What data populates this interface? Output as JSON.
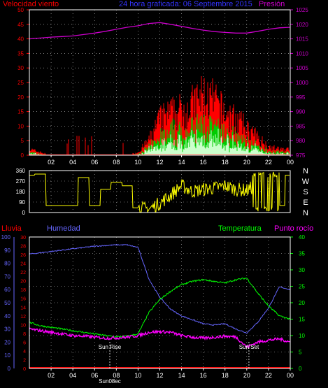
{
  "colors": {
    "background": "#000000",
    "axis": "#ffffff",
    "grid": "#ffffff",
    "wind": "#ff0000",
    "wind_mean": "#00cc00",
    "wind_low": "#ccffcc",
    "pressure": "#cc00cc",
    "wind_dir": "#ffff00",
    "rain": "#ff0000",
    "humidity": "#6666ff",
    "temperature": "#00ff00",
    "dewpoint": "#ff00ff",
    "sun": "#ffffff"
  },
  "chart_data": [
    {
      "type": "area",
      "title": "24 hora graficada: 06 Septiembre 2015",
      "ylabel_left": "Velocidad viento",
      "ylabel_right": "Presión",
      "ylim_left": [
        0,
        50
      ],
      "ylim_right": [
        975,
        1025
      ],
      "yticks_left": [
        "0",
        "5",
        "10",
        "15",
        "20",
        "25",
        "30",
        "35",
        "40",
        "45",
        "50"
      ],
      "yticks_right": [
        "975",
        "980",
        "985",
        "990",
        "995",
        "1000",
        "1005",
        "1010",
        "1015",
        "1020",
        "1025"
      ],
      "x": [
        0,
        1,
        2,
        3,
        4,
        5,
        6,
        7,
        8,
        9,
        10,
        11,
        12,
        13,
        14,
        15,
        16,
        17,
        18,
        19,
        20,
        21,
        22,
        23,
        24
      ],
      "xticks": [
        "02",
        "04",
        "06",
        "08",
        "10",
        "12",
        "14",
        "16",
        "18",
        "20",
        "22",
        "00"
      ],
      "series": [
        {
          "name": "Velocidad viento",
          "values": [
            2,
            1,
            0,
            0,
            0,
            0,
            0,
            0,
            0,
            0,
            1,
            5,
            12,
            14,
            15,
            17,
            20,
            18,
            14,
            12,
            9,
            6,
            3,
            2,
            2
          ]
        },
        {
          "name": "Presión",
          "values": [
            1015,
            1015.3,
            1015.6,
            1015.8,
            1016,
            1016.5,
            1017,
            1017.6,
            1018.3,
            1019,
            1019.5,
            1020.3,
            1020.6,
            1020,
            1019.3,
            1018.6,
            1018,
            1017.5,
            1017.2,
            1017,
            1017,
            1017.6,
            1018.3,
            1018.8,
            1019
          ]
        }
      ]
    },
    {
      "type": "line",
      "ylabel_right": [
        "N",
        "W",
        "S",
        "E",
        "N"
      ],
      "ylim": [
        0,
        360
      ],
      "yticks_left": [
        "0",
        "90",
        "180",
        "270",
        "360"
      ],
      "x": [
        0,
        1,
        2,
        3,
        4,
        5,
        6,
        7,
        8,
        9,
        10,
        11,
        12,
        13,
        14,
        15,
        16,
        17,
        18,
        19,
        20,
        21,
        22,
        23,
        24
      ],
      "series": [
        {
          "name": "Dirección viento",
          "values": [
            320,
            330,
            60,
            60,
            60,
            300,
            60,
            200,
            260,
            230,
            40,
            30,
            80,
            150,
            230,
            180,
            200,
            210,
            230,
            200,
            190,
            240,
            300,
            60,
            320
          ]
        }
      ]
    },
    {
      "type": "line",
      "ylabel_left_rain": "Lluvia",
      "ylabel_left_humidity": "Humedad",
      "ylabel_right_temp": "Temperatura",
      "ylabel_right_dew": "Punto rocío",
      "ylim_humidity": [
        0,
        100
      ],
      "ylim_rain": [
        0,
        30
      ],
      "ylim_temperature": [
        0,
        40
      ],
      "yticks_humidity": [
        "0",
        "10",
        "20",
        "30",
        "40",
        "50",
        "60",
        "70",
        "80",
        "90",
        "100"
      ],
      "yticks_rain": [
        "0",
        "2",
        "4",
        "6",
        "8",
        "10",
        "12",
        "14",
        "16",
        "18",
        "20",
        "22",
        "24",
        "26",
        "28",
        "30"
      ],
      "yticks_temperature": [
        "0",
        "5",
        "10",
        "15",
        "20",
        "25",
        "30",
        "35",
        "40"
      ],
      "x": [
        0,
        1,
        2,
        3,
        4,
        5,
        6,
        7,
        8,
        9,
        10,
        11,
        12,
        13,
        14,
        15,
        16,
        17,
        18,
        19,
        20,
        21,
        22,
        23,
        24
      ],
      "xticks": [
        "02",
        "04",
        "06",
        "08",
        "10",
        "12",
        "14",
        "16",
        "18",
        "20",
        "22",
        "00"
      ],
      "annotations": [
        {
          "label": "Sun Rise",
          "x": 7.4
        },
        {
          "label": "Sun Set",
          "x": 20.2
        },
        {
          "label": "Sun08ec",
          "x": 7.4
        }
      ],
      "series": [
        {
          "name": "Humedad",
          "values": [
            87,
            88,
            89,
            90,
            91,
            92,
            93,
            93.5,
            94,
            94,
            92,
            68,
            54,
            45,
            40,
            37,
            34,
            33,
            34,
            30,
            27,
            35,
            46,
            62,
            60
          ]
        },
        {
          "name": "Temperatura",
          "values": [
            14,
            13,
            12.5,
            12,
            11.5,
            11,
            10.5,
            10,
            9.6,
            9.8,
            10.5,
            17,
            21,
            23.5,
            25.5,
            26.5,
            27,
            26.5,
            26,
            27,
            27.5,
            23,
            19,
            16,
            15
          ]
        },
        {
          "name": "Punto rocío",
          "values": [
            12,
            11.5,
            11,
            10.5,
            10,
            9.8,
            9.5,
            9.2,
            9.3,
            9.5,
            10,
            11,
            11.2,
            11,
            10,
            9.5,
            9.2,
            9.5,
            9.8,
            9.6,
            6.5,
            8,
            8.6,
            9,
            8
          ]
        },
        {
          "name": "Lluvia",
          "values": [
            0,
            0,
            0,
            0,
            0,
            0,
            0,
            0,
            0,
            0,
            0,
            0,
            0,
            0,
            0,
            0,
            0,
            0,
            0,
            0,
            0,
            0,
            0,
            0,
            0
          ]
        }
      ]
    }
  ]
}
